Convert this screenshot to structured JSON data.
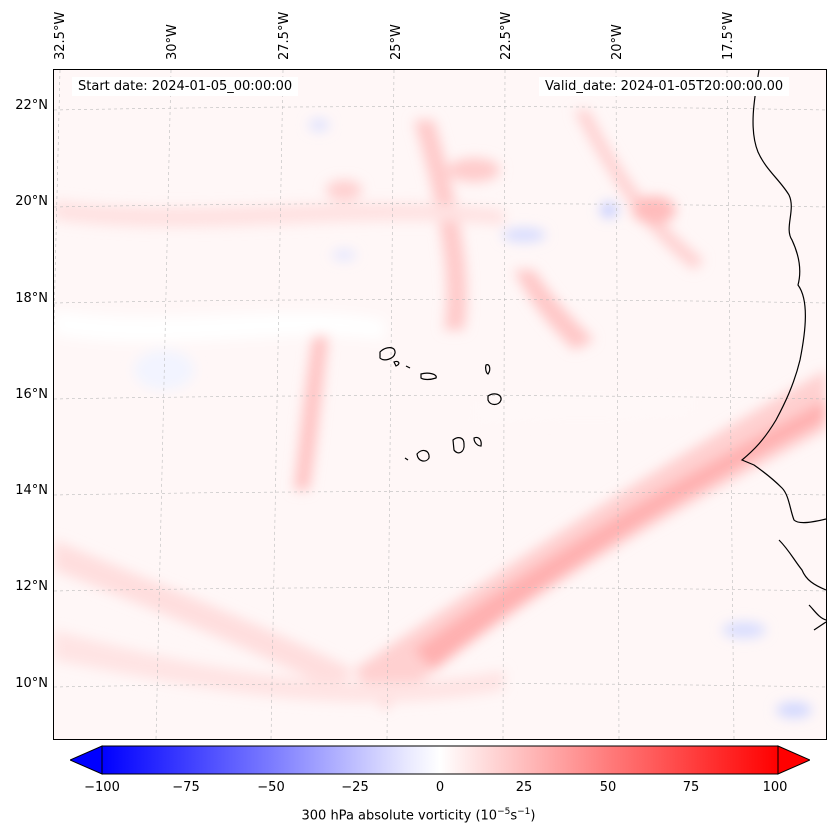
{
  "header": {
    "start_date": "Start date: 2024-01-05_00:00:00",
    "valid_date": "Valid_date: 2024-01-05T20:00:00.00"
  },
  "lon_ticks": [
    "32.5°W",
    "30°W",
    "27.5°W",
    "25°W",
    "22.5°W",
    "20°W",
    "17.5°W"
  ],
  "lat_ticks": [
    "22°N",
    "20°N",
    "18°N",
    "16°N",
    "14°N",
    "12°N",
    "10°N"
  ],
  "colorbar": {
    "ticks": [
      "−100",
      "−75",
      "−50",
      "−25",
      "0",
      "25",
      "50",
      "75",
      "100"
    ],
    "label_prefix": "300 hPa absolute vorticity (10",
    "label_exp1": "−5",
    "label_mid": "s",
    "label_exp2": "−1",
    "label_suffix": ")",
    "min_color": "#0000ff",
    "mid_color": "#ffffff",
    "max_color": "#ff0000",
    "range": [
      -100,
      100
    ],
    "extend": "both"
  },
  "map": {
    "background_color": "#fff7f7",
    "coastline_color": "#000000",
    "gridline_color": "#bbbbbb",
    "feature_colors": {
      "positive_band": "#ffc4c4",
      "strong_band": "#ffb0b0",
      "negative": "#dfe2ff"
    }
  }
}
